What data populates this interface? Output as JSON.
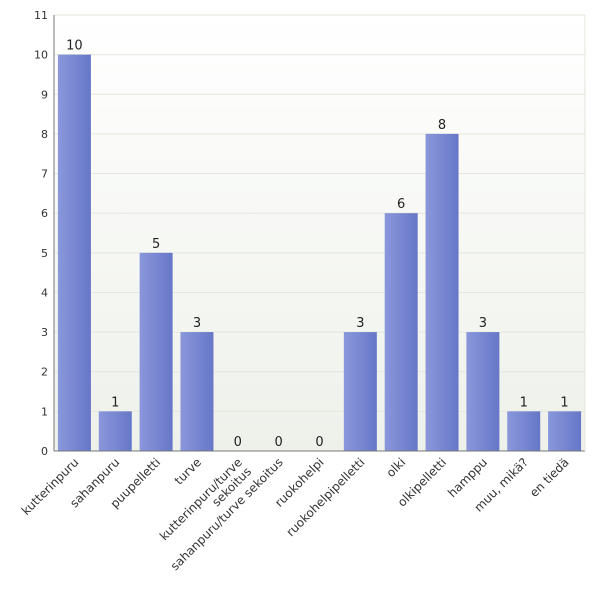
{
  "chart_data": {
    "type": "bar",
    "title": "",
    "xlabel": "",
    "ylabel": "",
    "ylim": [
      0,
      11
    ],
    "yticks": [
      "0",
      "1",
      "2",
      "3",
      "4",
      "5",
      "6",
      "7",
      "8",
      "9",
      "10",
      "11"
    ],
    "grid": true,
    "categories": [
      [
        "kutterinpuru"
      ],
      [
        "sahanpuru"
      ],
      [
        "puupelletti"
      ],
      [
        "turve"
      ],
      [
        "kutterinpuru/turve",
        "sekoitus"
      ],
      [
        "sahanpuru/turve sekoitus"
      ],
      [
        "ruokohelpi"
      ],
      [
        "ruokohelpipelletti"
      ],
      [
        "olki"
      ],
      [
        "olkipelletti"
      ],
      [
        "hamppu"
      ],
      [
        "muu, mikä?"
      ],
      [
        "en tiedä"
      ]
    ],
    "values": [
      10,
      1,
      5,
      3,
      0,
      0,
      0,
      3,
      6,
      8,
      3,
      1,
      1
    ],
    "data_labels": [
      "10",
      "1",
      "5",
      "3",
      "0",
      "0",
      "0",
      "3",
      "6",
      "8",
      "3",
      "1",
      "1"
    ],
    "colors": {
      "bar_top": "#8a97db",
      "bar_bottom": "#6677c8",
      "plot_bg_top": "#ffffff",
      "plot_bg_bottom": "#eef1ea",
      "grid": "#e3e6de",
      "axis": "#777777"
    }
  }
}
